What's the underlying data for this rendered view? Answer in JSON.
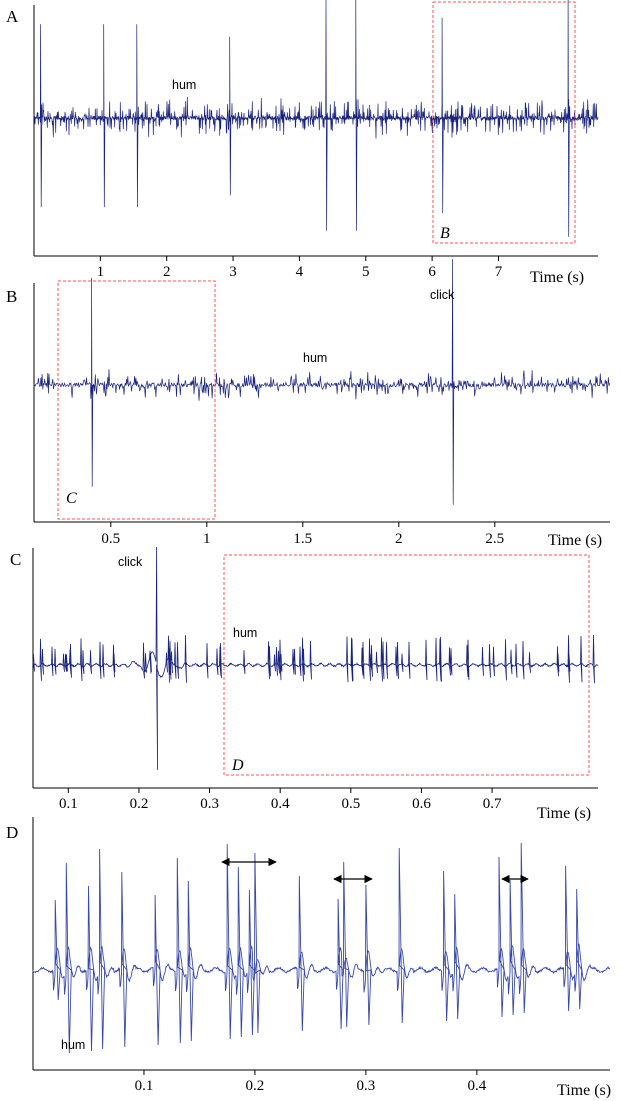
{
  "panels": [
    {
      "label": "A",
      "xlabel": "Time (s)",
      "annotations": [
        "hum"
      ],
      "box_label": "B"
    },
    {
      "label": "B",
      "xlabel": "Time (s)",
      "annotations": [
        "hum",
        "click"
      ],
      "box_label": "C"
    },
    {
      "label": "C",
      "xlabel": "Time (s)",
      "annotations": [
        "click",
        "hum"
      ],
      "box_label": "D"
    },
    {
      "label": "D",
      "xlabel": "Time (s)",
      "annotations": [
        "hum"
      ],
      "box_label": ""
    }
  ],
  "chart_data": [
    {
      "type": "line",
      "panel": "A",
      "title": "",
      "xlabel": "Time (s)",
      "ylabel": "",
      "xlim": [
        0,
        8.5
      ],
      "x_ticks": [
        1,
        2,
        3,
        4,
        5,
        6,
        7
      ],
      "x_tick_labels": [
        "1",
        "2",
        "3",
        "4",
        "5",
        "6",
        "7"
      ],
      "series": [
        {
          "description_clicks_s": [
            0.1,
            1.05,
            1.55,
            2.95,
            4.4,
            4.85,
            6.15,
            8.05
          ],
          "click_relative_amplitude": [
            0.75,
            0.75,
            0.75,
            0.65,
            0.95,
            0.95,
            0.8,
            1.0
          ]
        }
      ],
      "annotations": [
        "hum"
      ],
      "highlight_box": {
        "label": "B",
        "x_start": 6.1,
        "x_end": 8.2
      }
    },
    {
      "type": "line",
      "panel": "B",
      "title": "",
      "xlabel": "Time (s)",
      "ylabel": "",
      "xlim": [
        0.1,
        3.1
      ],
      "x_ticks": [
        0.5,
        1,
        1.5,
        2,
        2.5
      ],
      "x_tick_labels": [
        "0.5",
        "1",
        "1.5",
        "2",
        "2.5"
      ],
      "series": [
        {
          "description_clicks_s": [
            0.4,
            2.28
          ],
          "click_relative_amplitude": [
            0.85,
            1.0
          ]
        }
      ],
      "annotations": [
        "hum",
        "click"
      ],
      "highlight_box": {
        "label": "C",
        "x_start": 0.23,
        "x_end": 0.97
      }
    },
    {
      "type": "line",
      "panel": "C",
      "title": "",
      "xlabel": "Time (s)",
      "ylabel": "",
      "xlim": [
        0.05,
        0.85
      ],
      "x_ticks": [
        0.1,
        0.2,
        0.3,
        0.4,
        0.5,
        0.6,
        0.7
      ],
      "x_tick_labels": [
        "0.1",
        "0.2",
        "0.3",
        "0.4",
        "0.5",
        "0.6",
        "0.7"
      ],
      "series": [
        {
          "description_clicks_s": [
            0.225
          ],
          "click_relative_amplitude": [
            1.0
          ]
        }
      ],
      "annotations": [
        "click",
        "hum"
      ],
      "highlight_box": {
        "label": "D",
        "x_start": 0.335,
        "x_end": 0.84
      }
    },
    {
      "type": "line",
      "panel": "D",
      "title": "",
      "xlabel": "Time (s)",
      "ylabel": "",
      "xlim": [
        0,
        0.52
      ],
      "x_ticks": [
        0.1,
        0.2,
        0.3,
        0.4
      ],
      "x_tick_labels": [
        "0.1",
        "0.2",
        "0.3",
        "0.4"
      ],
      "series": [
        {
          "description_pulse_times_s": [
            0.02,
            0.03,
            0.05,
            0.06,
            0.08,
            0.11,
            0.13,
            0.14,
            0.175,
            0.185,
            0.195,
            0.2,
            0.24,
            0.275,
            0.28,
            0.3,
            0.33,
            0.37,
            0.38,
            0.42,
            0.43,
            0.44,
            0.48,
            0.49
          ]
        }
      ],
      "annotations": [
        "hum"
      ],
      "interval_arrows_s": [
        [
          0.17,
          0.22
        ],
        [
          0.27,
          0.305
        ],
        [
          0.42,
          0.445
        ]
      ]
    }
  ]
}
